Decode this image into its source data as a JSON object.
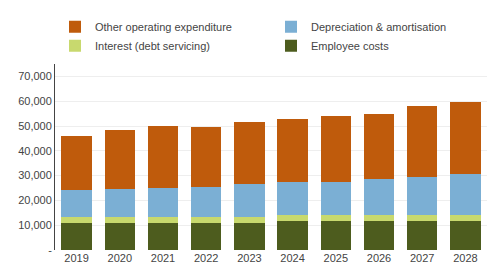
{
  "chart_data": {
    "type": "bar",
    "stacked": true,
    "categories": [
      "2019",
      "2020",
      "2021",
      "2022",
      "2023",
      "2024",
      "2025",
      "2026",
      "2027",
      "2028"
    ],
    "series": [
      {
        "name": "Employee costs",
        "color": "#4d5c1e",
        "values": [
          11000,
          11000,
          11000,
          11000,
          11000,
          11500,
          11500,
          11500,
          11500,
          11500
        ]
      },
      {
        "name": "Interest (debt servicing)",
        "color": "#c8d96e",
        "values": [
          2500,
          2500,
          2500,
          2500,
          2500,
          2500,
          2500,
          2500,
          2500,
          2500
        ]
      },
      {
        "name": "Depreciation & amortisation",
        "color": "#7bafd4",
        "values": [
          10500,
          11000,
          11500,
          12000,
          13000,
          13500,
          13500,
          14500,
          15500,
          16500
        ]
      },
      {
        "name": "Other operating expenditure",
        "color": "#bf5b0c",
        "values": [
          22000,
          24000,
          25000,
          24000,
          25000,
          25500,
          26500,
          26500,
          28500,
          29000
        ]
      }
    ],
    "ylim": [
      0,
      75000
    ],
    "yticks": [
      {
        "value": 0,
        "label": "-"
      },
      {
        "value": 10000,
        "label": "10,000"
      },
      {
        "value": 20000,
        "label": "20,000"
      },
      {
        "value": 30000,
        "label": "30,000"
      },
      {
        "value": 40000,
        "label": "40,000"
      },
      {
        "value": 50000,
        "label": "50,000"
      },
      {
        "value": 60000,
        "label": "60,000"
      },
      {
        "value": 70000,
        "label": "70,000"
      }
    ],
    "grid": true,
    "legend": "top"
  }
}
